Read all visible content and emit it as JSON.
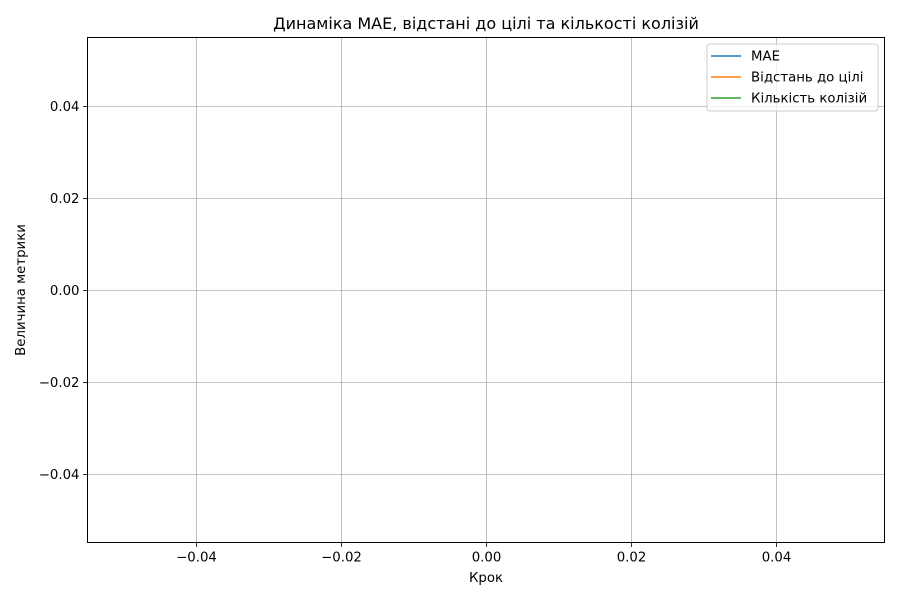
{
  "chart_data": {
    "type": "line",
    "title": "Динаміка MAE, відстані до цілі та кількості колізій",
    "xlabel": "Крок",
    "ylabel": "Величина метрики",
    "xlim": [
      -0.055,
      0.055
    ],
    "ylim": [
      -0.055,
      0.055
    ],
    "xticks": [
      -0.04,
      -0.02,
      0.0,
      0.02,
      0.04
    ],
    "yticks": [
      -0.04,
      -0.02,
      0.0,
      0.02,
      0.04
    ],
    "xtick_labels": [
      "−0.04",
      "−0.02",
      "0.00",
      "0.02",
      "0.04"
    ],
    "ytick_labels": [
      "−0.04",
      "−0.02",
      "0.00",
      "0.02",
      "0.04"
    ],
    "grid": true,
    "legend_position": "upper right",
    "series": [
      {
        "name": "MAE",
        "color": "#1f77b4",
        "x": [],
        "y": []
      },
      {
        "name": "Відстань до цілі",
        "color": "#ff7f0e",
        "x": [],
        "y": []
      },
      {
        "name": "Кількість колізій",
        "color": "#2ca02c",
        "x": [],
        "y": []
      }
    ]
  }
}
